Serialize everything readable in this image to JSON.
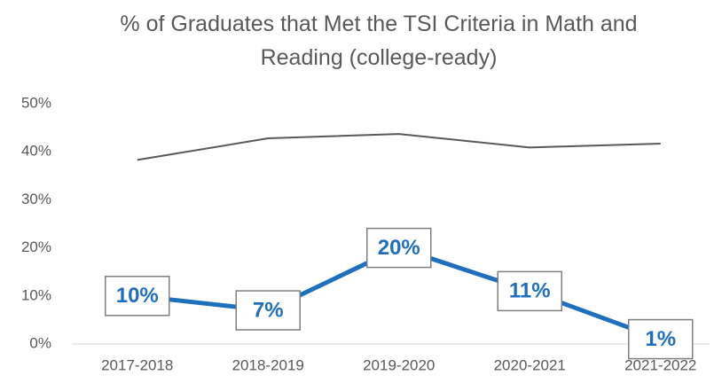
{
  "chart_data": {
    "type": "line",
    "title": "% of Graduates that Met the TSI Criteria in Math and Reading (college-ready)",
    "categories": [
      "2017-2018",
      "2018-2019",
      "2019-2020",
      "2020-2021",
      "2021-2022"
    ],
    "series": [
      {
        "color": "#595959",
        "values": [
          38.3,
          42.8,
          43.7,
          40.9,
          41.7
        ]
      },
      {
        "color": "#1f6fbf",
        "values": [
          10,
          7,
          20,
          11,
          1
        ],
        "value_labels": [
          "10%",
          "7%",
          "20%",
          "11%",
          "1%"
        ]
      }
    ],
    "ylim": [
      0,
      50
    ],
    "yticks": [
      {
        "value": 0,
        "label": "0%"
      },
      {
        "value": 10,
        "label": "10%"
      },
      {
        "value": 20,
        "label": "20%"
      },
      {
        "value": 30,
        "label": "30%"
      },
      {
        "value": 40,
        "label": "40%"
      },
      {
        "value": 50,
        "label": "50%"
      }
    ],
    "grid": false
  }
}
